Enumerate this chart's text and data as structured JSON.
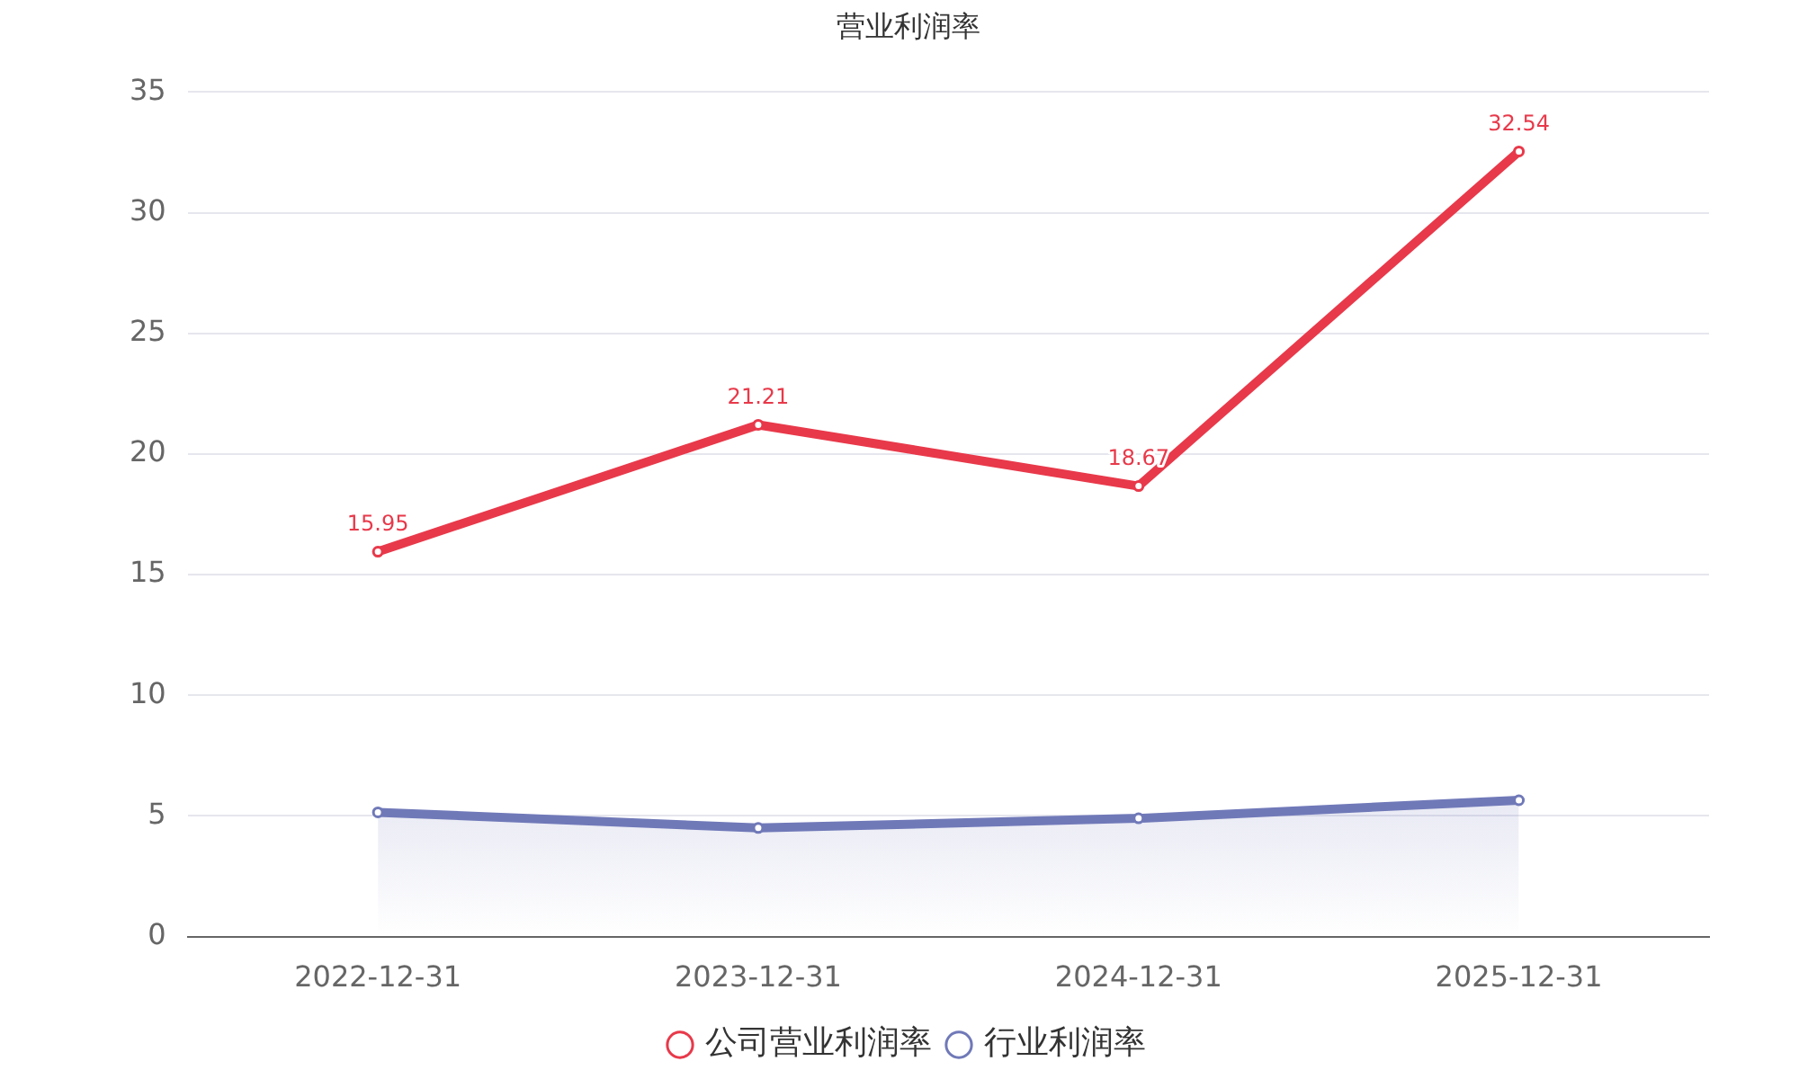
{
  "chart_data": {
    "type": "line",
    "title": "营业利润率",
    "categories": [
      "2022-12-31",
      "2023-12-31",
      "2024-12-31",
      "2025-12-31"
    ],
    "series": [
      {
        "name": "公司营业利润率",
        "type": "line",
        "color": "#e8394a",
        "values": [
          15.95,
          21.21,
          18.67,
          32.54
        ],
        "value_labels": [
          "15.95",
          "21.21",
          "18.67",
          "32.54"
        ]
      },
      {
        "name": "行业利润率",
        "type": "area",
        "color": "#7079b8",
        "values": [
          5.15,
          4.5,
          4.9,
          5.65
        ]
      }
    ],
    "ylim": [
      0,
      35
    ],
    "yticks": [
      0,
      5,
      10,
      15,
      20,
      25,
      30,
      35
    ],
    "grid": "y",
    "legend": "bottom",
    "marker": "circle",
    "line_style": "solid"
  }
}
